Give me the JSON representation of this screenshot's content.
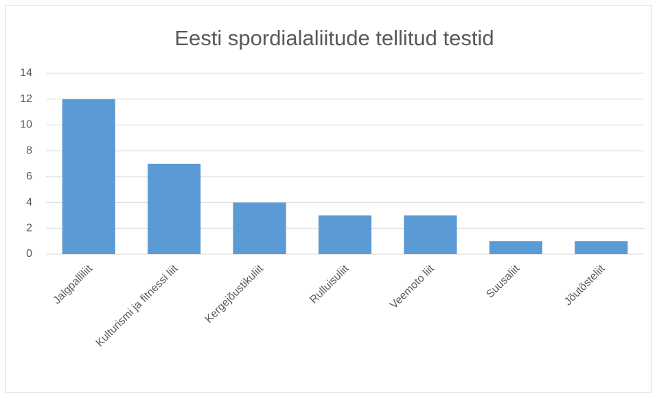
{
  "chart_data": {
    "type": "bar",
    "title": "Eesti spordialaliitude tellitud testid",
    "categories": [
      "Jalgpalliliit",
      "Kulturismi ja fitnessi liit",
      "Kergejõustikuliit",
      "Rulluisuliit",
      "Veemoto liit",
      "Suusaliit",
      "Jõutõsteliit"
    ],
    "values": [
      12,
      7,
      4,
      3,
      3,
      1,
      1
    ],
    "color": "#5b9bd5",
    "ylim": [
      0,
      14
    ],
    "yticks": [
      0,
      2,
      4,
      6,
      8,
      10,
      12,
      14
    ],
    "grid": true
  }
}
